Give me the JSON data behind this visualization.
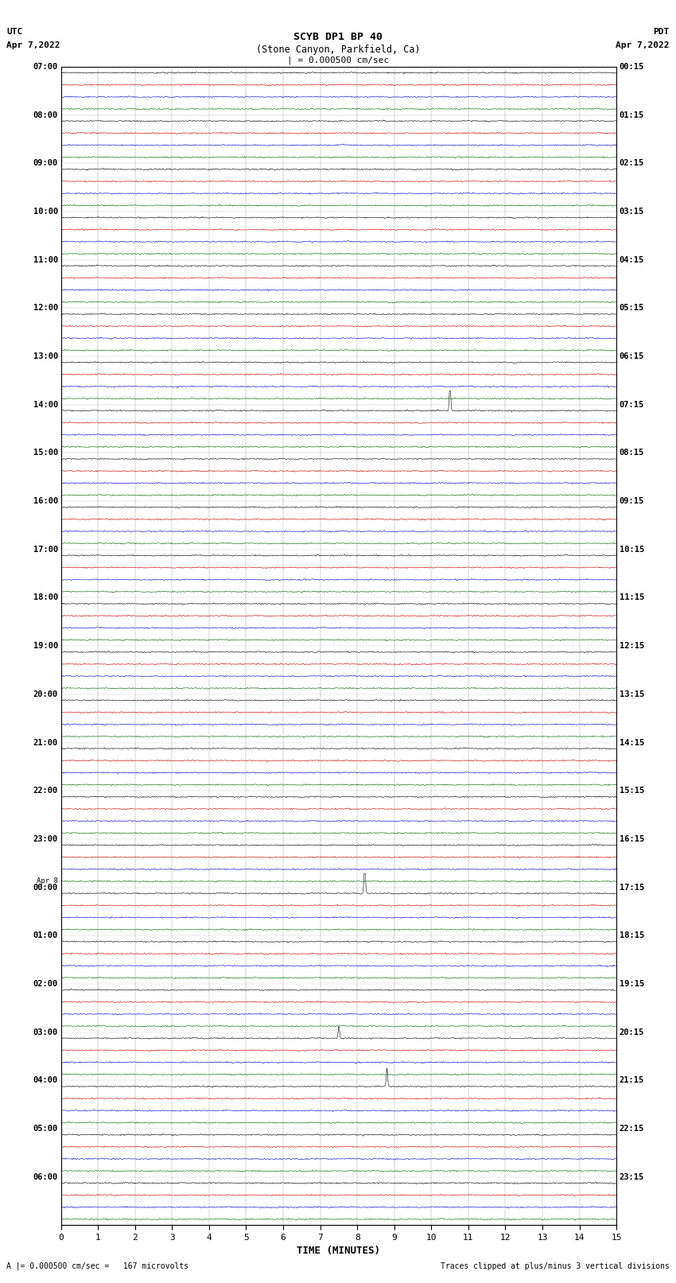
{
  "title_line1": "SCYB DP1 BP 40",
  "title_line2": "(Stone Canyon, Parkfield, Ca)",
  "scale_label": "| = 0.000500 cm/sec",
  "left_label": "UTC",
  "left_date": "Apr 7,2022",
  "right_label": "PDT",
  "right_date": "Apr 7,2022",
  "xlabel": "TIME (MINUTES)",
  "bottom_left": "A |= 0.000500 cm/sec =   167 microvolts",
  "bottom_right": "Traces clipped at plus/minus 3 vertical divisions",
  "trace_colors": [
    "#000000",
    "#cc0000",
    "#0000cc",
    "#006600"
  ],
  "bg_color": "#ffffff",
  "hour_labels_utc": [
    "07:00",
    "08:00",
    "09:00",
    "10:00",
    "11:00",
    "12:00",
    "13:00",
    "14:00",
    "15:00",
    "16:00",
    "17:00",
    "18:00",
    "19:00",
    "20:00",
    "21:00",
    "22:00",
    "23:00",
    "00:00",
    "01:00",
    "02:00",
    "03:00",
    "04:00",
    "05:00",
    "06:00"
  ],
  "hour_labels_pdt": [
    "00:15",
    "01:15",
    "02:15",
    "03:15",
    "04:15",
    "05:15",
    "06:15",
    "07:15",
    "08:15",
    "09:15",
    "10:15",
    "11:15",
    "12:15",
    "13:15",
    "14:15",
    "15:15",
    "16:15",
    "17:15",
    "18:15",
    "19:15",
    "20:15",
    "21:15",
    "22:15",
    "23:15"
  ],
  "n_rows": 96,
  "traces_per_row": 4,
  "noise_amp": 0.055,
  "linewidth": 0.4,
  "events": [
    {
      "row": 28,
      "ci": 0,
      "x": 10.5,
      "amp": 2.5
    },
    {
      "row": 28,
      "ci": 1,
      "x": 10.5,
      "amp": 2.5
    },
    {
      "row": 29,
      "ci": 0,
      "x": 10.5,
      "amp": 0.8
    },
    {
      "row": 68,
      "ci": 0,
      "x": 8.2,
      "amp": 3.5
    },
    {
      "row": 68,
      "ci": 1,
      "x": 8.2,
      "amp": 1.5
    },
    {
      "row": 68,
      "ci": 2,
      "x": 8.2,
      "amp": 1.0
    },
    {
      "row": 80,
      "ci": 0,
      "x": 7.5,
      "amp": 1.0
    },
    {
      "row": 84,
      "ci": 1,
      "x": 8.8,
      "amp": 3.0
    },
    {
      "row": 84,
      "ci": 0,
      "x": 8.8,
      "amp": 1.5
    },
    {
      "row": 88,
      "ci": 1,
      "x": 9.0,
      "amp": 1.2
    },
    {
      "row": 92,
      "ci": 1,
      "x": 6.5,
      "amp": 1.2
    }
  ]
}
